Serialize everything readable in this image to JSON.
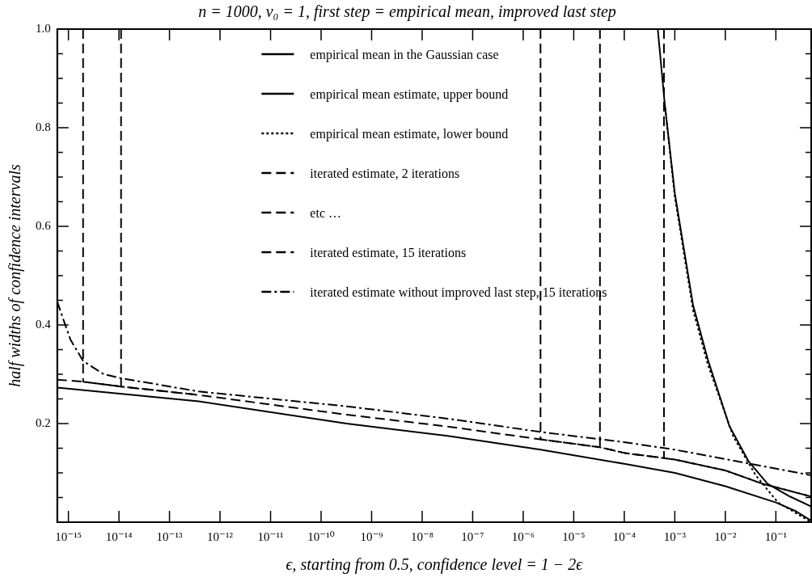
{
  "chart_data": {
    "type": "line",
    "title": "n = 1000, v₀ = 1, first step = empirical mean, improved last step",
    "xlabel": "ϵ, starting from 0.5, confidence level = 1 − 2ϵ",
    "ylabel": "half widths of confidence intervals",
    "log": "x",
    "grid": false,
    "legend": "top",
    "marker": "none",
    "xlim": [
      6e-16,
      0.5
    ],
    "ylim": [
      0,
      1
    ],
    "xticks": [
      {
        "value": 1e-15,
        "label": "10⁻¹⁵"
      },
      {
        "value": 1e-14,
        "label": "10⁻¹⁴"
      },
      {
        "value": 1e-13,
        "label": "10⁻¹³"
      },
      {
        "value": 1e-12,
        "label": "10⁻¹²"
      },
      {
        "value": 1e-11,
        "label": "10⁻¹¹"
      },
      {
        "value": 1e-10,
        "label": "10⁻¹⁰"
      },
      {
        "value": 1e-09,
        "label": "10⁻⁹"
      },
      {
        "value": 1e-08,
        "label": "10⁻⁸"
      },
      {
        "value": 1e-07,
        "label": "10⁻⁷"
      },
      {
        "value": 1e-06,
        "label": "10⁻⁶"
      },
      {
        "value": 1e-05,
        "label": "10⁻⁵"
      },
      {
        "value": 0.0001,
        "label": "10⁻⁴"
      },
      {
        "value": 0.001,
        "label": "10⁻³"
      },
      {
        "value": 0.01,
        "label": "10⁻²"
      },
      {
        "value": 0.1,
        "label": "10⁻¹"
      }
    ],
    "yticks": [
      {
        "value": 0.05,
        "label": null
      },
      {
        "value": 0.1,
        "label": null
      },
      {
        "value": 0.15,
        "label": null
      },
      0.2,
      {
        "value": 0.25,
        "label": null
      },
      {
        "value": 0.3,
        "label": null
      },
      {
        "value": 0.35,
        "label": null
      },
      0.4,
      {
        "value": 0.45,
        "label": null
      },
      {
        "value": 0.5,
        "label": null
      },
      {
        "value": 0.55,
        "label": null
      },
      0.6,
      {
        "value": 0.65,
        "label": null
      },
      {
        "value": 0.7,
        "label": null
      },
      {
        "value": 0.75,
        "label": null
      },
      0.8,
      {
        "value": 0.85,
        "label": null
      },
      {
        "value": 0.9,
        "label": null
      },
      {
        "value": 0.95,
        "label": null
      },
      {
        "value": 1,
        "label": "1.0"
      }
    ],
    "series": [
      {
        "name": "empirical mean in the Gaussian case",
        "color": "#000000",
        "line_style": "solid",
        "x": [
          6e-16,
          3.8e-13,
          3.2e-10,
          3.2e-08,
          2.2e-06,
          0.000105,
          0.001,
          0.01,
          0.1,
          0.24,
          0.5
        ],
        "values": [
          0.273,
          0.245,
          0.2,
          0.175,
          0.147,
          0.118,
          0.1,
          0.073,
          0.04,
          0.023,
          0.003
        ]
      },
      {
        "name": "empirical mean estimate, upper bound",
        "color": "#000000",
        "line_style": "solid",
        "x": [
          0.00046,
          0.00063,
          0.001,
          0.0023,
          0.0045,
          0.012,
          0.029,
          0.068,
          0.19,
          0.5
        ],
        "values": [
          1,
          0.85,
          0.667,
          0.44,
          0.33,
          0.195,
          0.123,
          0.078,
          0.052,
          0.032
        ]
      },
      {
        "name": "empirical mean estimate, lower bound",
        "color": "#000000",
        "line_style": "dotted",
        "x": [
          0.00063,
          0.001,
          0.0023,
          0.0045,
          0.0145,
          0.04,
          0.11,
          0.5
        ],
        "values": [
          0.85,
          0.66,
          0.43,
          0.32,
          0.173,
          0.095,
          0.04,
          0
        ]
      },
      {
        "name": "iterated estimate, 2 iterations",
        "color": "#000000",
        "line_style": "dashed",
        "x": [
          0.00061,
          0.00061,
          0.001,
          0.01,
          0.054,
          0.5
        ],
        "values": [
          1,
          0.13,
          0.127,
          0.105,
          0.078,
          0.052
        ]
      },
      {
        "name": "etc …",
        "color": "#000000",
        "line_style": "dashed",
        "x": [
          3.3e-05,
          3.3e-05,
          0.000105,
          0.00061
        ],
        "values": [
          1,
          0.152,
          0.14,
          0.13
        ]
      },
      {
        "color": "#000000",
        "line_style": "dashed",
        "x": [
          2.2e-06,
          2.2e-06,
          3.3e-05
        ],
        "values": [
          1,
          0.168,
          0.152
        ]
      },
      {
        "color": "#000000",
        "line_style": "dashed",
        "x": [
          1.1e-14,
          1.1e-14,
          3.8e-13
        ],
        "values": [
          1,
          0.275,
          0.258
        ]
      },
      {
        "color": "#000000",
        "line_style": "dashed",
        "x": [
          1.95e-15,
          1.95e-15,
          1.1e-14
        ],
        "values": [
          1,
          0.285,
          0.275
        ]
      },
      {
        "name": "iterated estimate, 15 iterations",
        "color": "#000000",
        "line_style": "dashed",
        "x": [
          6e-16,
          1.95e-15,
          1.1e-14,
          3.8e-13,
          3.2e-10,
          3.2e-08,
          2.2e-06,
          3.3e-05,
          0.000105,
          0.00061,
          0.001,
          0.01,
          0.054,
          0.5
        ],
        "values": [
          0.289,
          0.285,
          0.275,
          0.258,
          0.218,
          0.194,
          0.168,
          0.152,
          0.14,
          0.13,
          0.127,
          0.105,
          0.078,
          0.052
        ]
      },
      {
        "name": "iterated estimate without improved last step, 15 iterations",
        "color": "#000000",
        "line_style": "dashdot",
        "x": [
          6e-16,
          8e-16,
          1.1e-15,
          1.95e-15,
          5e-15,
          1.1e-14,
          3.8e-13,
          3.2e-10,
          3.2e-08,
          2.2e-06,
          0.000105,
          0.001,
          0.026,
          0.5
        ],
        "values": [
          0.448,
          0.41,
          0.37,
          0.327,
          0.3,
          0.292,
          0.265,
          0.235,
          0.21,
          0.183,
          0.162,
          0.147,
          0.12,
          0.095
        ]
      }
    ]
  }
}
